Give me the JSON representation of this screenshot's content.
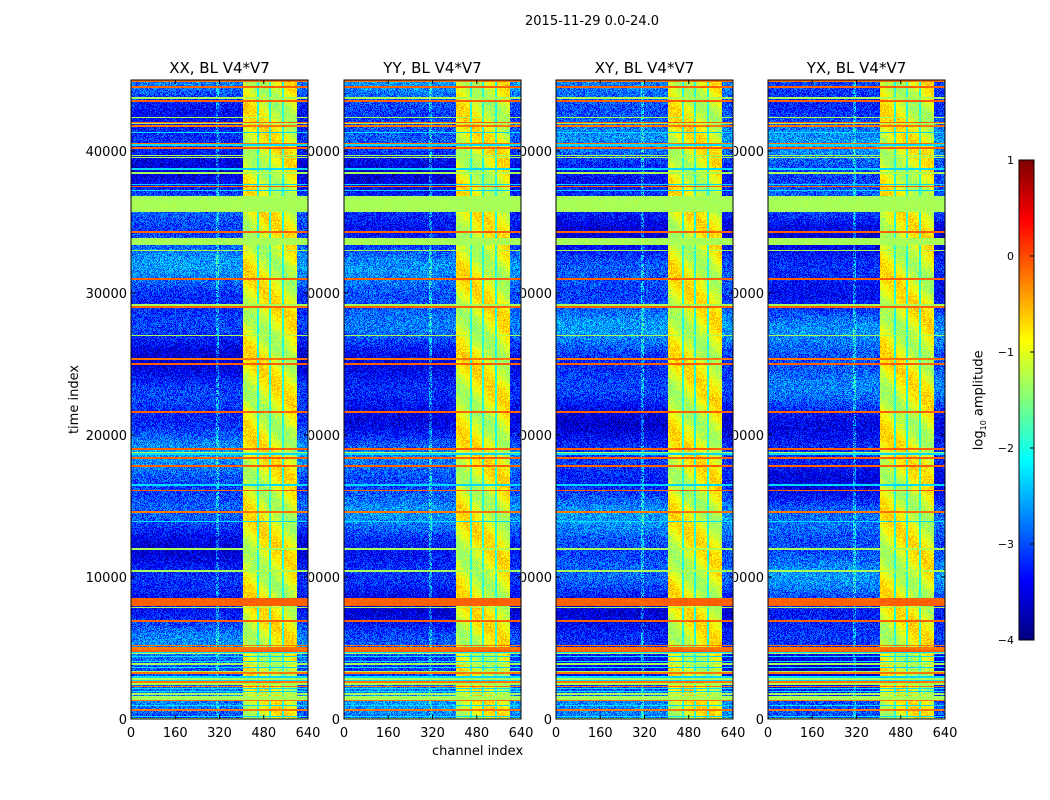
{
  "suptitle": "2015-11-29 0.0-24.0",
  "chart_data": {
    "type": "heatmap",
    "panels": [
      {
        "title": "XX, BL V4*V7"
      },
      {
        "title": "YY, BL V4*V7"
      },
      {
        "title": "XY, BL V4*V7"
      },
      {
        "title": "YX, BL V4*V7"
      }
    ],
    "xlabel": "channel index",
    "ylabel": "time index",
    "xlim": [
      0,
      640
    ],
    "ylim": [
      0,
      45000
    ],
    "xticks": [
      0,
      160,
      320,
      480,
      640
    ],
    "xtick_labels": [
      "0",
      "160",
      "320",
      "480",
      "640"
    ],
    "yticks": [
      0,
      10000,
      20000,
      30000,
      40000
    ],
    "ytick_labels": [
      "0",
      "10000",
      "20000",
      "30000",
      "40000"
    ],
    "colormap": "jet",
    "colorbar": {
      "label": "log10 amplitude",
      "label_base": "log",
      "label_sub": "10",
      "label_rest": " amplitude",
      "range": [
        -4,
        1
      ],
      "ticks": [
        1,
        0,
        -1,
        -2,
        -3,
        -4
      ],
      "tick_labels": [
        "1",
        "0",
        "−1",
        "−2",
        "−3",
        "−4"
      ]
    },
    "features": {
      "background_log_amp": -3.1,
      "rfi_channel_band": [
        405,
        600
      ],
      "rfi_band_log_amp": -1.0,
      "band_gap_channels": [
        458,
        503,
        550
      ],
      "flagged_time_ranges": [
        [
          35700,
          36800
        ],
        [
          33400,
          33900
        ]
      ],
      "strong_time_lines": [
        8250,
        31000,
        34300,
        19000,
        18400,
        17800,
        21600,
        4800,
        6900,
        16100,
        25000,
        29000,
        37500,
        40200,
        42000,
        43500,
        44500
      ]
    }
  }
}
